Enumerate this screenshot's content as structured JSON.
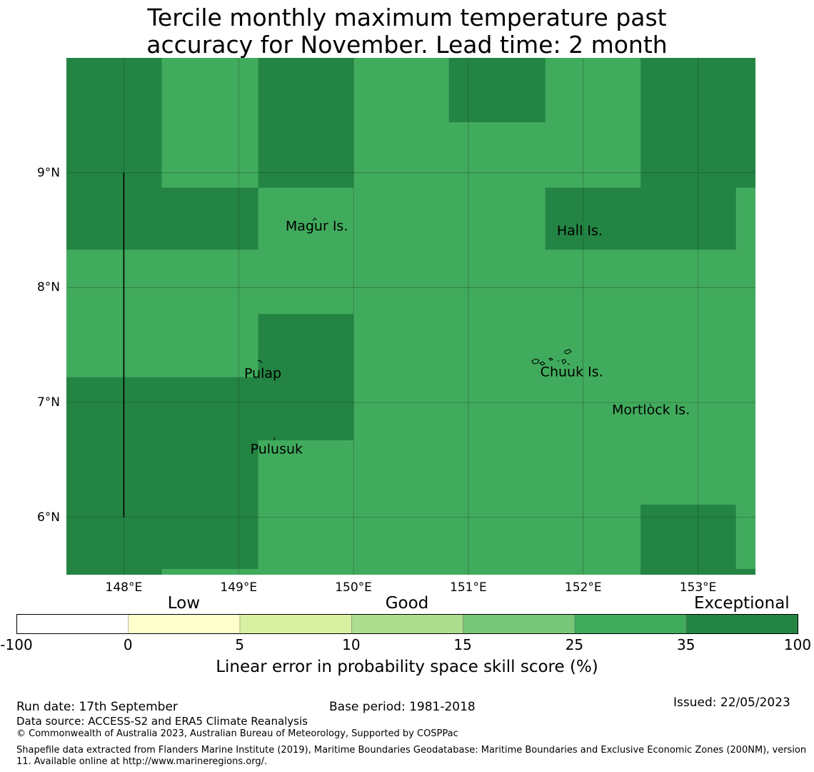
{
  "title": {
    "line1": "Tercile monthly maximum temperature past",
    "line2": "accuracy for November. Lead time: 2 month"
  },
  "map": {
    "lon_range": [
      147.5,
      153.5
    ],
    "lat_range": [
      5.5,
      10.0
    ],
    "lat_ticks": [
      {
        "value": 9,
        "label": "9°N"
      },
      {
        "value": 8,
        "label": "8°N"
      },
      {
        "value": 7,
        "label": "7°N"
      },
      {
        "value": 6,
        "label": "6°N"
      }
    ],
    "lon_ticks": [
      {
        "value": 148,
        "label": "148°E"
      },
      {
        "value": 149,
        "label": "149°E"
      },
      {
        "value": 150,
        "label": "150°E"
      },
      {
        "value": 151,
        "label": "151°E"
      },
      {
        "value": 152,
        "label": "152°E"
      },
      {
        "value": 153,
        "label": "153°E"
      }
    ],
    "colors": {
      "good": "#41ab5d",
      "exceptional": "#238443",
      "grid": "#1a3d22",
      "boundary": "#000000"
    },
    "exceptional_cells": [
      {
        "lon": [
          147.5,
          148.33
        ],
        "lat": [
          8.87,
          10.0
        ]
      },
      {
        "lon": [
          147.5,
          149.17
        ],
        "lat": [
          8.33,
          8.87
        ]
      },
      {
        "lon": [
          149.17,
          150.0
        ],
        "lat": [
          8.87,
          10.0
        ]
      },
      {
        "lon": [
          150.83,
          151.67
        ],
        "lat": [
          9.44,
          10.0
        ]
      },
      {
        "lon": [
          152.5,
          153.5
        ],
        "lat": [
          8.87,
          10.0
        ]
      },
      {
        "lon": [
          151.67,
          153.33
        ],
        "lat": [
          8.33,
          8.87
        ]
      },
      {
        "lon": [
          149.17,
          150.0
        ],
        "lat": [
          6.67,
          7.77
        ]
      },
      {
        "lon": [
          147.5,
          149.17
        ],
        "lat": [
          5.55,
          7.22
        ]
      },
      {
        "lon": [
          147.5,
          148.33
        ],
        "lat": [
          5.5,
          5.55
        ]
      },
      {
        "lon": [
          152.5,
          153.33
        ],
        "lat": [
          5.5,
          6.11
        ]
      },
      {
        "lon": [
          153.33,
          153.5
        ],
        "lat": [
          5.5,
          5.55
        ]
      }
    ],
    "boundary_line": {
      "lon": 148.0,
      "lat": [
        6.0,
        9.0
      ]
    },
    "islands": [
      {
        "name": "Magur Is.",
        "label_lon": 149.68,
        "label_lat": 8.53
      },
      {
        "name": "Hall Is.",
        "label_lon": 151.97,
        "label_lat": 8.49
      },
      {
        "name": "Pulap",
        "label_lon": 149.21,
        "label_lat": 7.25
      },
      {
        "name": "Chuuk Is.",
        "label_lon": 151.9,
        "label_lat": 7.26
      },
      {
        "name": "Mortlock Is.",
        "label_lon": 152.59,
        "label_lat": 6.93
      },
      {
        "name": "Pulusuk",
        "label_lon": 149.33,
        "label_lat": 6.59
      }
    ]
  },
  "colorbar": {
    "categories": [
      {
        "label": "Low",
        "value": 2.5
      },
      {
        "label": "Good",
        "value": 12.5
      },
      {
        "label": "Exceptional",
        "value": 67.5
      }
    ],
    "ticks": [
      "-100",
      "0",
      "5",
      "10",
      "15",
      "25",
      "35",
      "100"
    ],
    "colors": [
      "#ffffff",
      "#ffffcc",
      "#d9f0a3",
      "#addd8e",
      "#78c679",
      "#41ab5d",
      "#238443"
    ],
    "label": "Linear error in probability space skill score (%)"
  },
  "footer": {
    "run_date": "Run date: 17th September",
    "base_period": "Base period: 1981-2018",
    "issued": "Issued: 22/05/2023",
    "data_source": "Data source: ACCESS-S2 and ERA5 Climate Reanalysis",
    "copyright": "© Commonwealth of Australia 2023, Australian Bureau of Meteorology, Supported by COSPPac",
    "shapefile": "Shapefile data extracted from Flanders Marine Institute (2019), Maritime Boundaries Geodatabase: Maritime Boundaries and Exclusive Economic Zones (200NM), version 11. Available online at http://www.marineregions.org/."
  }
}
